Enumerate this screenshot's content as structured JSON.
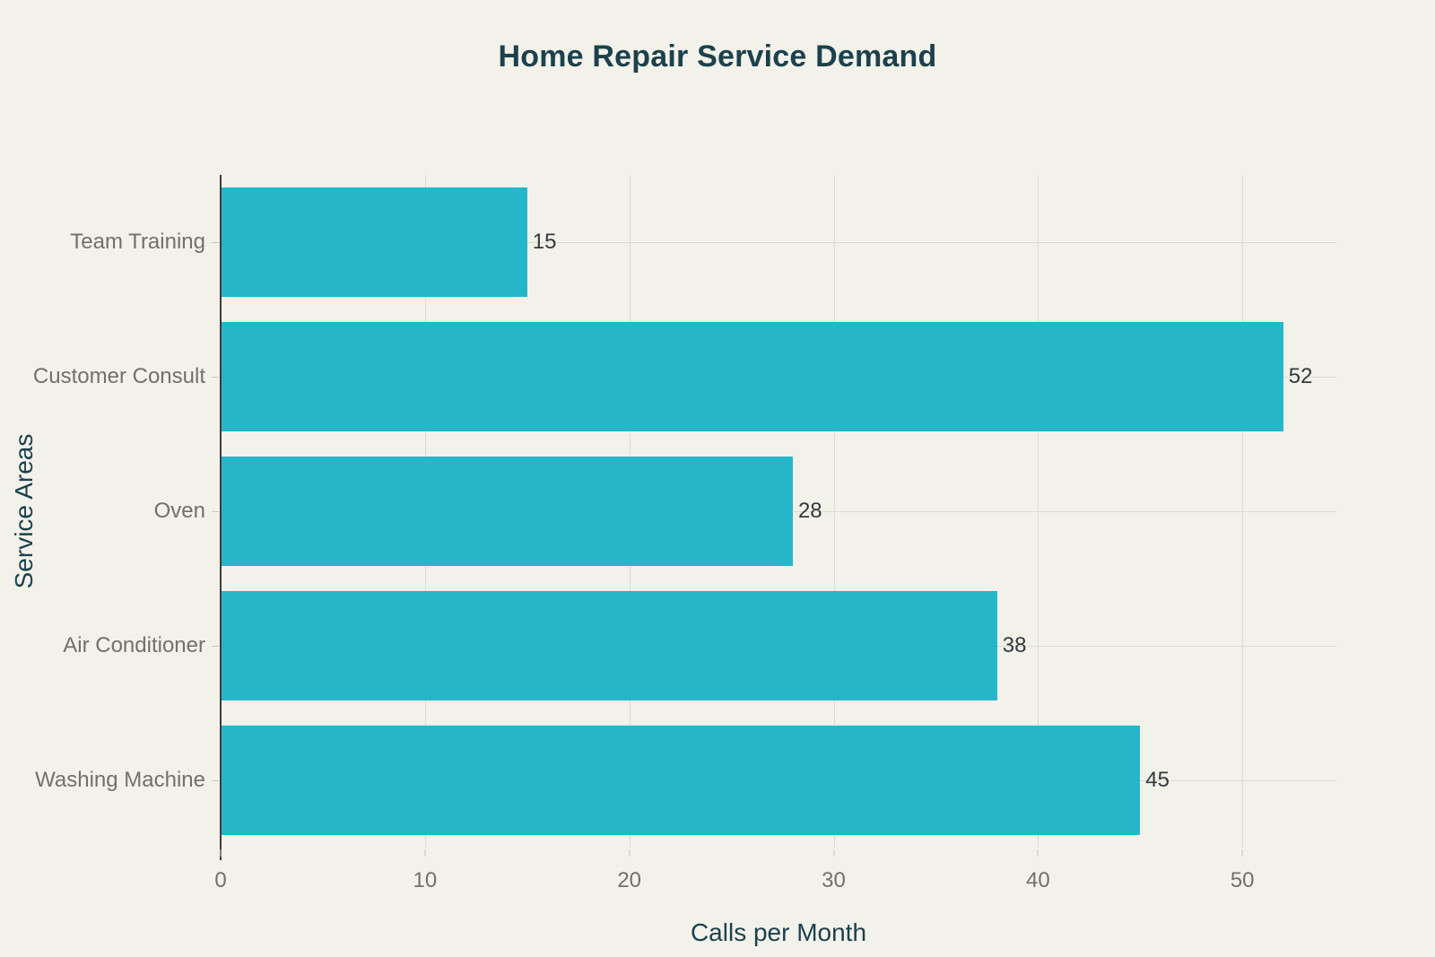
{
  "chart_data": {
    "type": "bar",
    "orientation": "horizontal",
    "title": "Home Repair Service Demand",
    "xlabel": "Calls per Month",
    "ylabel": "Service Areas",
    "categories": [
      "Team Training",
      "Customer Consult",
      "Oven",
      "Air Conditioner",
      "Washing Machine"
    ],
    "values": [
      15,
      52,
      28,
      38,
      45
    ],
    "xticks": [
      0,
      10,
      20,
      30,
      40,
      50
    ],
    "xlim": [
      0,
      54.6
    ],
    "grid": "both",
    "legend": "none",
    "value_labels_position": "outside-end",
    "colors": {
      "background": "#f2f1ea",
      "bar": "#26b6c9",
      "title_text": "#1c414c",
      "axis_title_text": "#1c414c",
      "tick_text": "#71706d",
      "value_text": "#333a3d",
      "gridline": "#dbdad3",
      "axis_line": "#3c3c3a",
      "tick_mark": "#c6c5bf"
    }
  }
}
